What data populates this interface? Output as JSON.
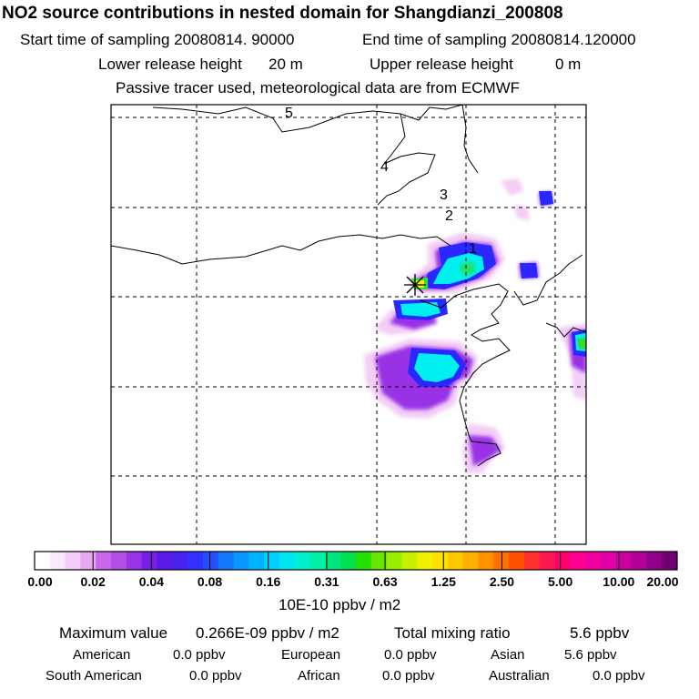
{
  "header": {
    "title": "NO2 source contributions in nested domain for Shangdianzi_200808",
    "start_label": "Start time of sampling 20080814. 90000",
    "end_label": "End time of sampling 20080814.120000",
    "lower_label": "Lower release height",
    "lower_value": "20 m",
    "upper_label": "Upper release height",
    "upper_value": "0 m",
    "note": "Passive tracer used, meteorological data are from ECMWF"
  },
  "map": {
    "receptor_symbol": "asterisk-star",
    "contour_labels": [
      "5",
      "4",
      "3",
      "2",
      "1"
    ]
  },
  "colorbar": {
    "unit": "10E-10 ppbv / m2",
    "ticks": [
      "0.00",
      "0.02",
      "0.04",
      "0.08",
      "0.16",
      "0.31",
      "0.63",
      "1.25",
      "2.50",
      "5.00",
      "10.00",
      "20.00"
    ],
    "colors": [
      "#ffffff",
      "#fbe8fb",
      "#f3cdf5",
      "#e8a8f0",
      "#cc66ee",
      "#b34de8",
      "#9933e6",
      "#7a1fe6",
      "#5a19e6",
      "#4a22f0",
      "#3030ff",
      "#2050ff",
      "#1478ff",
      "#0a95ff",
      "#00b4ff",
      "#00d0ff",
      "#00e6f0",
      "#00f0d0",
      "#00f0a8",
      "#00e680",
      "#00e050",
      "#22e000",
      "#66e600",
      "#99ee00",
      "#c8f000",
      "#f0f000",
      "#ffe000",
      "#ffc800",
      "#ffb000",
      "#ff9000",
      "#ff7000",
      "#ff5000",
      "#ff3030",
      "#ff1850",
      "#ff0070",
      "#ff0090",
      "#f000a0",
      "#e000a8",
      "#cc00a0",
      "#b00098",
      "#900088",
      "#700070"
    ]
  },
  "summary": {
    "max_label": "Maximum value",
    "max_value": "0.266E-09 ppbv / m2",
    "total_label": "Total mixing ratio",
    "total_value": "5.6 ppbv",
    "regions": [
      {
        "name": "American",
        "value": "0.0 ppbv"
      },
      {
        "name": "European",
        "value": "0.0 ppbv"
      },
      {
        "name": "Asian",
        "value": "5.6 ppbv"
      },
      {
        "name": "South American",
        "value": "0.0 ppbv"
      },
      {
        "name": "African",
        "value": "0.0 ppbv"
      },
      {
        "name": "Australian",
        "value": "0.0 ppbv"
      }
    ]
  }
}
